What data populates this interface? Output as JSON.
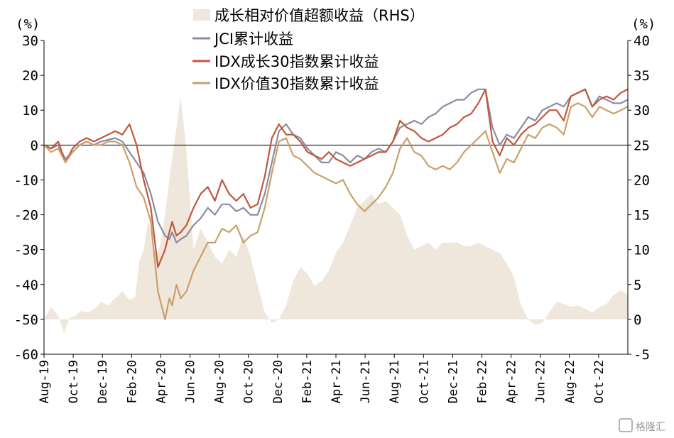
{
  "chart_data": {
    "type": "line",
    "left_unit": "(%)",
    "right_unit": "(%)",
    "left_axis": {
      "min": -60,
      "max": 30,
      "ticks": [
        30,
        20,
        10,
        0,
        -10,
        -20,
        -30,
        -40,
        -50,
        -60
      ]
    },
    "right_axis": {
      "min": -5,
      "max": 40,
      "ticks": [
        40,
        35,
        30,
        25,
        20,
        15,
        10,
        5,
        0,
        -5
      ]
    },
    "x_ticks": [
      "Aug-19",
      "Oct-19",
      "Dec-19",
      "Feb-20",
      "Apr-20",
      "Jun-20",
      "Aug-20",
      "Oct-20",
      "Dec-20",
      "Feb-21",
      "Apr-21",
      "Jun-21",
      "Aug-21",
      "Oct-21",
      "Dec-21",
      "Feb-22",
      "Apr-22",
      "Jun-22",
      "Aug-22",
      "Oct-22"
    ],
    "x_range": [
      0,
      41
    ],
    "legend_position": "top",
    "series": [
      {
        "name": "成长相对价值超额收益（RHS）",
        "kind": "area",
        "axis": "right",
        "color": "#efe6dc",
        "x": [
          0,
          0.5,
          1,
          1.4,
          1.8,
          2.2,
          2.6,
          3.1,
          3.6,
          4,
          4.5,
          5,
          5.5,
          6,
          6.4,
          6.7,
          7,
          7.3,
          7.6,
          7.9,
          8.2,
          8.5,
          8.8,
          9.2,
          9.6,
          10,
          10.5,
          11,
          11.5,
          12,
          12.5,
          13,
          13.5,
          14,
          14.5,
          15,
          15.5,
          16,
          16.5,
          17,
          17.5,
          18,
          18.5,
          19,
          19.5,
          20,
          20.5,
          21,
          21.5,
          22,
          22.5,
          23,
          23.5,
          24,
          24.5,
          25,
          25.5,
          26,
          26.5,
          27,
          27.5,
          28,
          28.5,
          29,
          29.5,
          30,
          30.5,
          31,
          31.5,
          32,
          32.5,
          33,
          33.5,
          34,
          34.5,
          35,
          35.5,
          36,
          36.5,
          37,
          37.5,
          38,
          38.5,
          39,
          39.5,
          40,
          40.5,
          41
        ],
        "values": [
          0,
          1.8,
          0.5,
          -2,
          0.2,
          0.5,
          1.2,
          1,
          1.6,
          2.5,
          2,
          3,
          4,
          2.8,
          3.2,
          8.5,
          10,
          14,
          12,
          9,
          11,
          15,
          20,
          26,
          32,
          24,
          10,
          13,
          11,
          9,
          8,
          10,
          9,
          12,
          9,
          5,
          1,
          -0.5,
          0,
          2,
          5.5,
          7.5,
          6.5,
          4.8,
          5.5,
          7,
          9.5,
          11,
          13.5,
          16,
          17,
          18,
          16.5,
          17,
          16,
          15,
          12,
          10,
          10.5,
          11,
          10,
          11,
          11,
          11,
          10.5,
          10.5,
          11,
          10.5,
          10,
          9.5,
          8,
          6,
          2,
          0,
          -0.8,
          -0.5,
          1,
          2.5,
          2.2,
          1.8,
          2,
          1.5,
          1,
          1.8,
          2.2,
          3.5,
          4.2,
          3.5
        ]
      },
      {
        "name": "JCI累计收益",
        "kind": "line",
        "axis": "left",
        "color": "#8a8da3",
        "x": [
          0,
          0.5,
          1,
          1.5,
          2,
          2.5,
          3,
          3.5,
          4,
          4.5,
          5,
          5.5,
          6,
          6.5,
          7,
          7.5,
          8,
          8.5,
          8.8,
          9,
          9.3,
          9.6,
          10,
          10.5,
          11,
          11.5,
          12,
          12.5,
          13,
          13.5,
          14,
          14.5,
          15,
          15.5,
          16,
          16.5,
          17,
          17.5,
          18,
          18.5,
          19,
          19.5,
          20,
          20.5,
          21,
          21.5,
          22,
          22.5,
          23,
          23.5,
          24,
          24.5,
          25,
          25.5,
          26,
          26.5,
          27,
          27.5,
          28,
          28.5,
          29,
          29.5,
          30,
          30.5,
          31,
          31.5,
          32,
          32.5,
          33,
          33.5,
          34,
          34.5,
          35,
          35.5,
          36,
          36.5,
          37,
          37.5,
          38,
          38.5,
          39,
          39.5,
          40,
          40.5,
          41
        ],
        "values": [
          0,
          -1,
          0,
          -4,
          -2,
          0,
          1,
          0,
          1,
          1.5,
          2,
          1,
          -2,
          -5,
          -8,
          -14,
          -22,
          -26,
          -27,
          -25,
          -28,
          -27,
          -26,
          -23,
          -21,
          -18,
          -20,
          -17,
          -17,
          -19,
          -18,
          -20,
          -20,
          -14,
          -5,
          4,
          6,
          3,
          2,
          -1,
          -3,
          -5,
          -5,
          -2,
          -3,
          -5,
          -3,
          -4,
          -2,
          -1,
          -2,
          1,
          5,
          6,
          7,
          6,
          8,
          9,
          11,
          12,
          13,
          13,
          15,
          16,
          16,
          5,
          0,
          3,
          2,
          5,
          8,
          7,
          10,
          11,
          12,
          11,
          14,
          15,
          16,
          11,
          14,
          13,
          12,
          12,
          13
        ]
      },
      {
        "name": "IDX成长30指数累计收益",
        "kind": "line",
        "axis": "left",
        "color": "#c0583c",
        "x": [
          0,
          0.5,
          1,
          1.5,
          2,
          2.5,
          3,
          3.5,
          4,
          4.5,
          5,
          5.5,
          6,
          6.5,
          7,
          7.5,
          8,
          8.5,
          8.8,
          9,
          9.3,
          9.6,
          10,
          10.5,
          11,
          11.5,
          12,
          12.5,
          13,
          13.5,
          14,
          14.5,
          15,
          15.5,
          16,
          16.5,
          17,
          17.5,
          18,
          18.5,
          19,
          19.5,
          20,
          20.5,
          21,
          21.5,
          22,
          22.5,
          23,
          23.5,
          24,
          24.5,
          25,
          25.5,
          26,
          26.5,
          27,
          27.5,
          28,
          28.5,
          29,
          29.5,
          30,
          30.5,
          31,
          31.5,
          32,
          32.5,
          33,
          33.5,
          34,
          34.5,
          35,
          35.5,
          36,
          36.5,
          37,
          37.5,
          38,
          38.5,
          39,
          39.5,
          40,
          40.5,
          41
        ],
        "values": [
          0,
          -1,
          1,
          -5,
          -1,
          1,
          2,
          1,
          2,
          3,
          4,
          3,
          6,
          0,
          -10,
          -18,
          -35,
          -30,
          -25,
          -22,
          -26,
          -25,
          -23,
          -18,
          -14,
          -12,
          -16,
          -10,
          -14,
          -16,
          -14,
          -18,
          -17,
          -9,
          2,
          6,
          3,
          3,
          1,
          -2,
          -3,
          -4,
          -2,
          -4,
          -5,
          -6,
          -5,
          -4,
          -3,
          -2,
          -2,
          1,
          7,
          5,
          4,
          2,
          1,
          2,
          3,
          5,
          6,
          8,
          9,
          12,
          16,
          1,
          -3,
          2,
          0,
          3,
          5,
          6,
          8,
          10,
          10,
          7,
          14,
          15,
          16,
          11,
          13,
          14,
          13,
          15,
          16
        ]
      },
      {
        "name": "IDX价值30指数累计收益",
        "kind": "line",
        "axis": "left",
        "color": "#c9a06a",
        "x": [
          0,
          0.5,
          1,
          1.5,
          2,
          2.5,
          3,
          3.5,
          4,
          4.5,
          5,
          5.5,
          6,
          6.5,
          7,
          7.5,
          8,
          8.5,
          8.8,
          9,
          9.3,
          9.6,
          10,
          10.5,
          11,
          11.5,
          12,
          12.5,
          13,
          13.5,
          14,
          14.5,
          15,
          15.5,
          16,
          16.5,
          17,
          17.5,
          18,
          18.5,
          19,
          19.5,
          20,
          20.5,
          21,
          21.5,
          22,
          22.5,
          23,
          23.5,
          24,
          24.5,
          25,
          25.5,
          26,
          26.5,
          27,
          27.5,
          28,
          28.5,
          29,
          29.5,
          30,
          30.5,
          31,
          31.5,
          32,
          32.5,
          33,
          33.5,
          34,
          34.5,
          35,
          35.5,
          36,
          36.5,
          37,
          37.5,
          38,
          38.5,
          39,
          39.5,
          40,
          40.5,
          41
        ],
        "values": [
          0,
          -2,
          -1,
          -5,
          -2,
          0,
          1,
          0,
          0,
          1,
          1,
          0,
          -5,
          -12,
          -15,
          -22,
          -42,
          -50,
          -44,
          -46,
          -40,
          -44,
          -42,
          -36,
          -32,
          -28,
          -28,
          -24,
          -25,
          -23,
          -28,
          -26,
          -25,
          -18,
          -8,
          1,
          2,
          -3,
          -4,
          -6,
          -8,
          -9,
          -10,
          -11,
          -10,
          -14,
          -17,
          -19,
          -17,
          -15,
          -12,
          -8,
          -1,
          2,
          -2,
          -3,
          -6,
          -7,
          -6,
          -7,
          -5,
          -2,
          0,
          2,
          4,
          -2,
          -8,
          -4,
          -5,
          -1,
          3,
          2,
          5,
          6,
          5,
          3,
          11,
          12,
          11,
          8,
          11,
          10,
          9,
          10,
          11
        ]
      }
    ]
  },
  "watermark": "格隆汇"
}
